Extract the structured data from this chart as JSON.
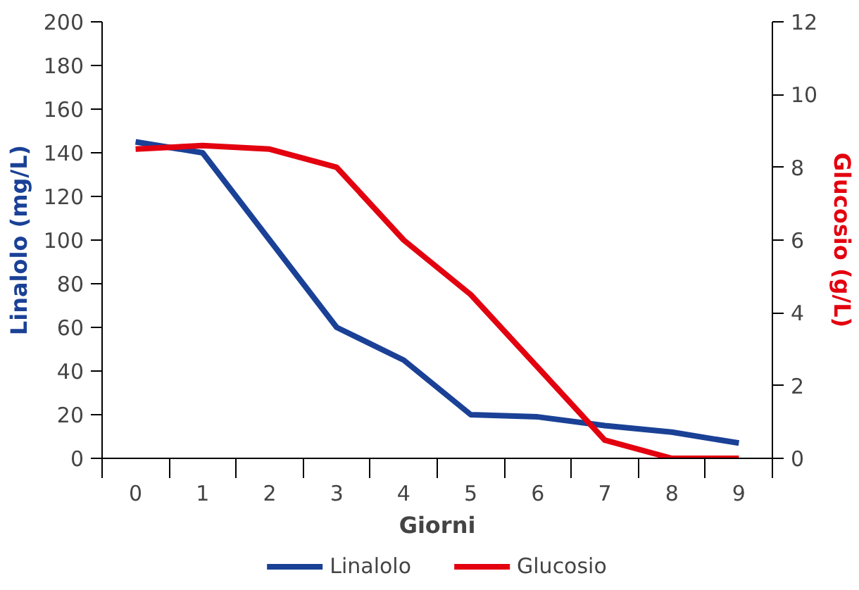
{
  "chart_data": {
    "type": "line",
    "xlabel": "Giorni",
    "ylabel": "Linalolo (mg/L)",
    "y2label": "Glucosio (g/L)",
    "categories": [
      "0",
      "1",
      "2",
      "3",
      "4",
      "5",
      "6",
      "7",
      "8",
      "9"
    ],
    "series": [
      {
        "name": "Linalolo",
        "color": "#1a4196",
        "values": [
          145,
          140,
          100,
          60,
          45,
          20,
          19,
          15,
          12,
          7
        ]
      },
      {
        "name": "Glucosio",
        "color": "#e3000f",
        "axis": "y2",
        "values": [
          8.5,
          8.6,
          8.5,
          8.0,
          6.0,
          4.5,
          2.5,
          0.5,
          0,
          0
        ]
      }
    ],
    "ylim": [
      0,
      200
    ],
    "yticks": [
      0,
      20,
      40,
      60,
      80,
      100,
      120,
      140,
      160,
      180,
      200
    ],
    "y2lim": [
      0,
      12
    ],
    "y2ticks": [
      0,
      2,
      4,
      6,
      8,
      10,
      12
    ],
    "grid": false,
    "legend": "bottom",
    "marker": "none",
    "line_style": "solid"
  }
}
